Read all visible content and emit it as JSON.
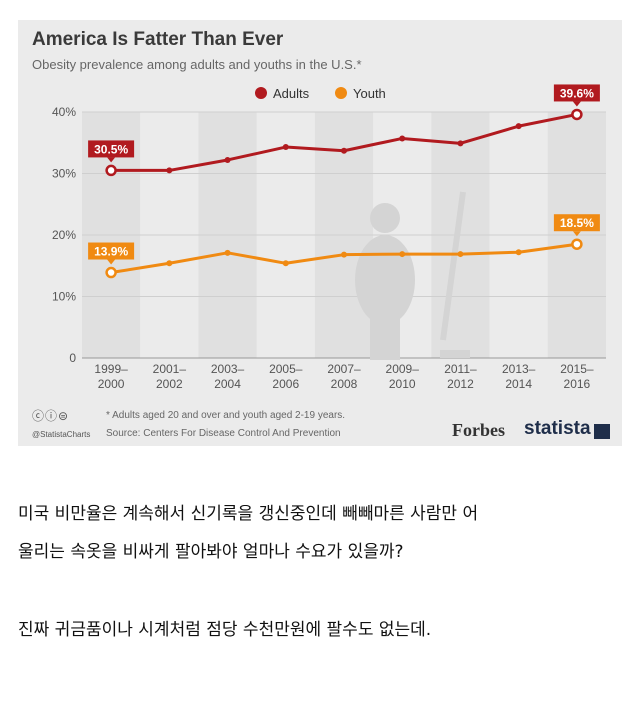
{
  "chart_data": {
    "type": "line",
    "title": "America Is Fatter Than Ever",
    "subtitle": "Obesity prevalence among adults and youths in the U.S.*",
    "categories": [
      "1999–2000",
      "2001–2002",
      "2003–2004",
      "2005–2006",
      "2007–2008",
      "2009–2010",
      "2011–2012",
      "2013–2014",
      "2015–2016"
    ],
    "category_lines": [
      [
        "1999–",
        "2000"
      ],
      [
        "2001–",
        "2002"
      ],
      [
        "2003–",
        "2004"
      ],
      [
        "2005–",
        "2006"
      ],
      [
        "2007–",
        "2008"
      ],
      [
        "2009–",
        "2010"
      ],
      [
        "2011–",
        "2012"
      ],
      [
        "2013–",
        "2014"
      ],
      [
        "2015–",
        "2016"
      ]
    ],
    "yticks": [
      "0",
      "10%",
      "20%",
      "30%",
      "40%"
    ],
    "ylim": [
      0,
      40
    ],
    "legend_position": "top-center",
    "grid": true,
    "series": [
      {
        "name": "Adults",
        "color": "#b11a1f",
        "values": [
          30.5,
          30.5,
          32.2,
          34.3,
          33.7,
          35.7,
          34.9,
          37.7,
          39.6
        ],
        "labels": [
          "30.5%",
          null,
          null,
          null,
          null,
          null,
          null,
          null,
          "39.6%"
        ]
      },
      {
        "name": "Youth",
        "color": "#f08a12",
        "values": [
          13.9,
          15.4,
          17.1,
          15.4,
          16.8,
          16.9,
          16.9,
          17.2,
          18.5
        ],
        "labels": [
          "13.9%",
          null,
          null,
          null,
          null,
          null,
          null,
          null,
          "18.5%"
        ]
      }
    ]
  },
  "footer": {
    "note": "* Adults aged 20 and over and youth aged 2-19 years.",
    "source": "Source: Centers For Disease Control And Prevention",
    "handle": "@StatistaCharts",
    "cc_icons": "ⓒⓘ⊜",
    "forbes": "Forbes",
    "statista": "statista"
  },
  "post": {
    "line1": "미국 비만율은 계속해서 신기록을 갱신중인데 빼빼마른 사람만 어",
    "line2": "울리는 속옷을 비싸게 팔아봐야 얼마나 수요가 있을까?",
    "line3": "진짜 귀금품이나 시계처럼 점당 수천만원에 팔수도 없는데."
  }
}
